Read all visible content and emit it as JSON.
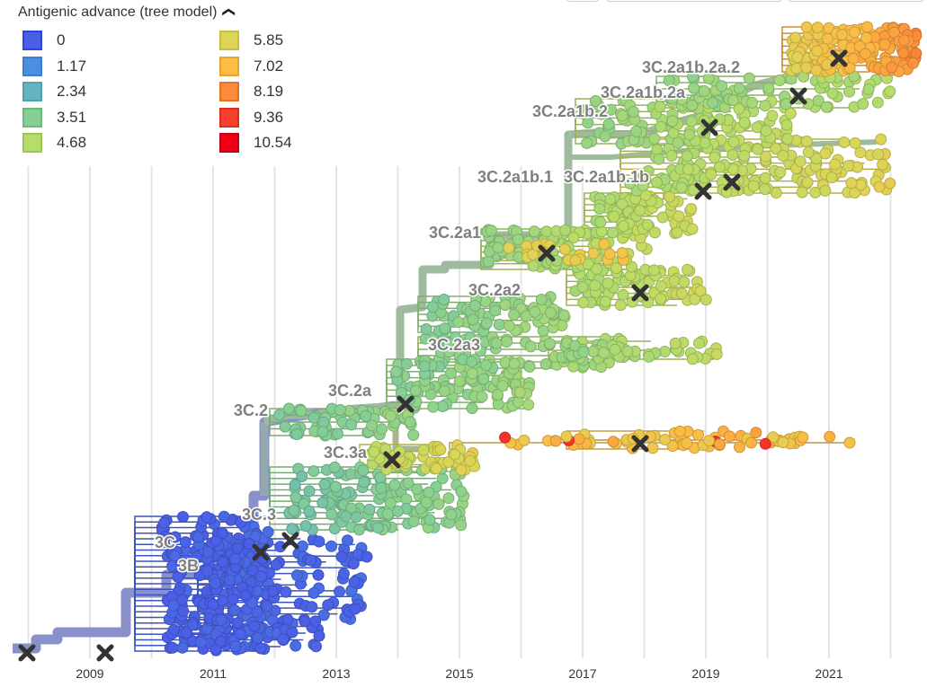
{
  "legend": {
    "title": "Antigenic advance (tree model)",
    "collapse_icon": "chevron-up-icon",
    "items": [
      {
        "label": "0",
        "fill": "#4b5ee6",
        "stroke": "#2f44d8"
      },
      {
        "label": "1.17",
        "fill": "#4a8fe0",
        "stroke": "#3a7ed4"
      },
      {
        "label": "2.34",
        "fill": "#64b4c0",
        "stroke": "#4fa2ae"
      },
      {
        "label": "3.51",
        "fill": "#86cf94",
        "stroke": "#6abb7a"
      },
      {
        "label": "4.68",
        "fill": "#b6dc6a",
        "stroke": "#9cc64f"
      },
      {
        "label": "5.85",
        "fill": "#dcd557",
        "stroke": "#c7bf3d"
      },
      {
        "label": "7.02",
        "fill": "#fbbd45",
        "stroke": "#e9a42b"
      },
      {
        "label": "8.19",
        "fill": "#fb8a3a",
        "stroke": "#e57224"
      },
      {
        "label": "9.36",
        "fill": "#f93f2d",
        "stroke": "#e02a1a"
      },
      {
        "label": "10.54",
        "fill": "#f00015",
        "stroke": "#c9000f"
      }
    ]
  },
  "time_axis": {
    "tick_labels": [
      "2009",
      "2011",
      "2013",
      "2015",
      "2017",
      "2019",
      "2021"
    ]
  },
  "clade_labels": [
    {
      "text": "3C.2a1b.2a.2",
      "color": "#7f7f7f"
    },
    {
      "text": "3C.2a1b.2a",
      "color": "#7f7f7f"
    },
    {
      "text": "3C.2a1b.2",
      "color": "#7f7f7f"
    },
    {
      "text": "3C.2a1b.1",
      "color": "#7f7f7f"
    },
    {
      "text": "3C.2a1b.1b",
      "color": "#7f7f7f"
    },
    {
      "text": "3C.2a1",
      "color": "#7f7f7f"
    },
    {
      "text": "3C.2a2",
      "color": "#7f7f7f"
    },
    {
      "text": "3C.2a3",
      "color": "#7f7f7f"
    },
    {
      "text": "3C.2a",
      "color": "#7f7f7f"
    },
    {
      "text": "3C.2",
      "color": "#7f7f7f"
    },
    {
      "text": "3C.3a",
      "color": "#7f7f7f"
    },
    {
      "text": "3C.3",
      "color": "#7f7f7f"
    },
    {
      "text": "3C",
      "color": "#7f7f7f"
    },
    {
      "text": "3B",
      "color": "#7f7f7f"
    }
  ],
  "vaccine_marker_icon": "cross-icon"
}
